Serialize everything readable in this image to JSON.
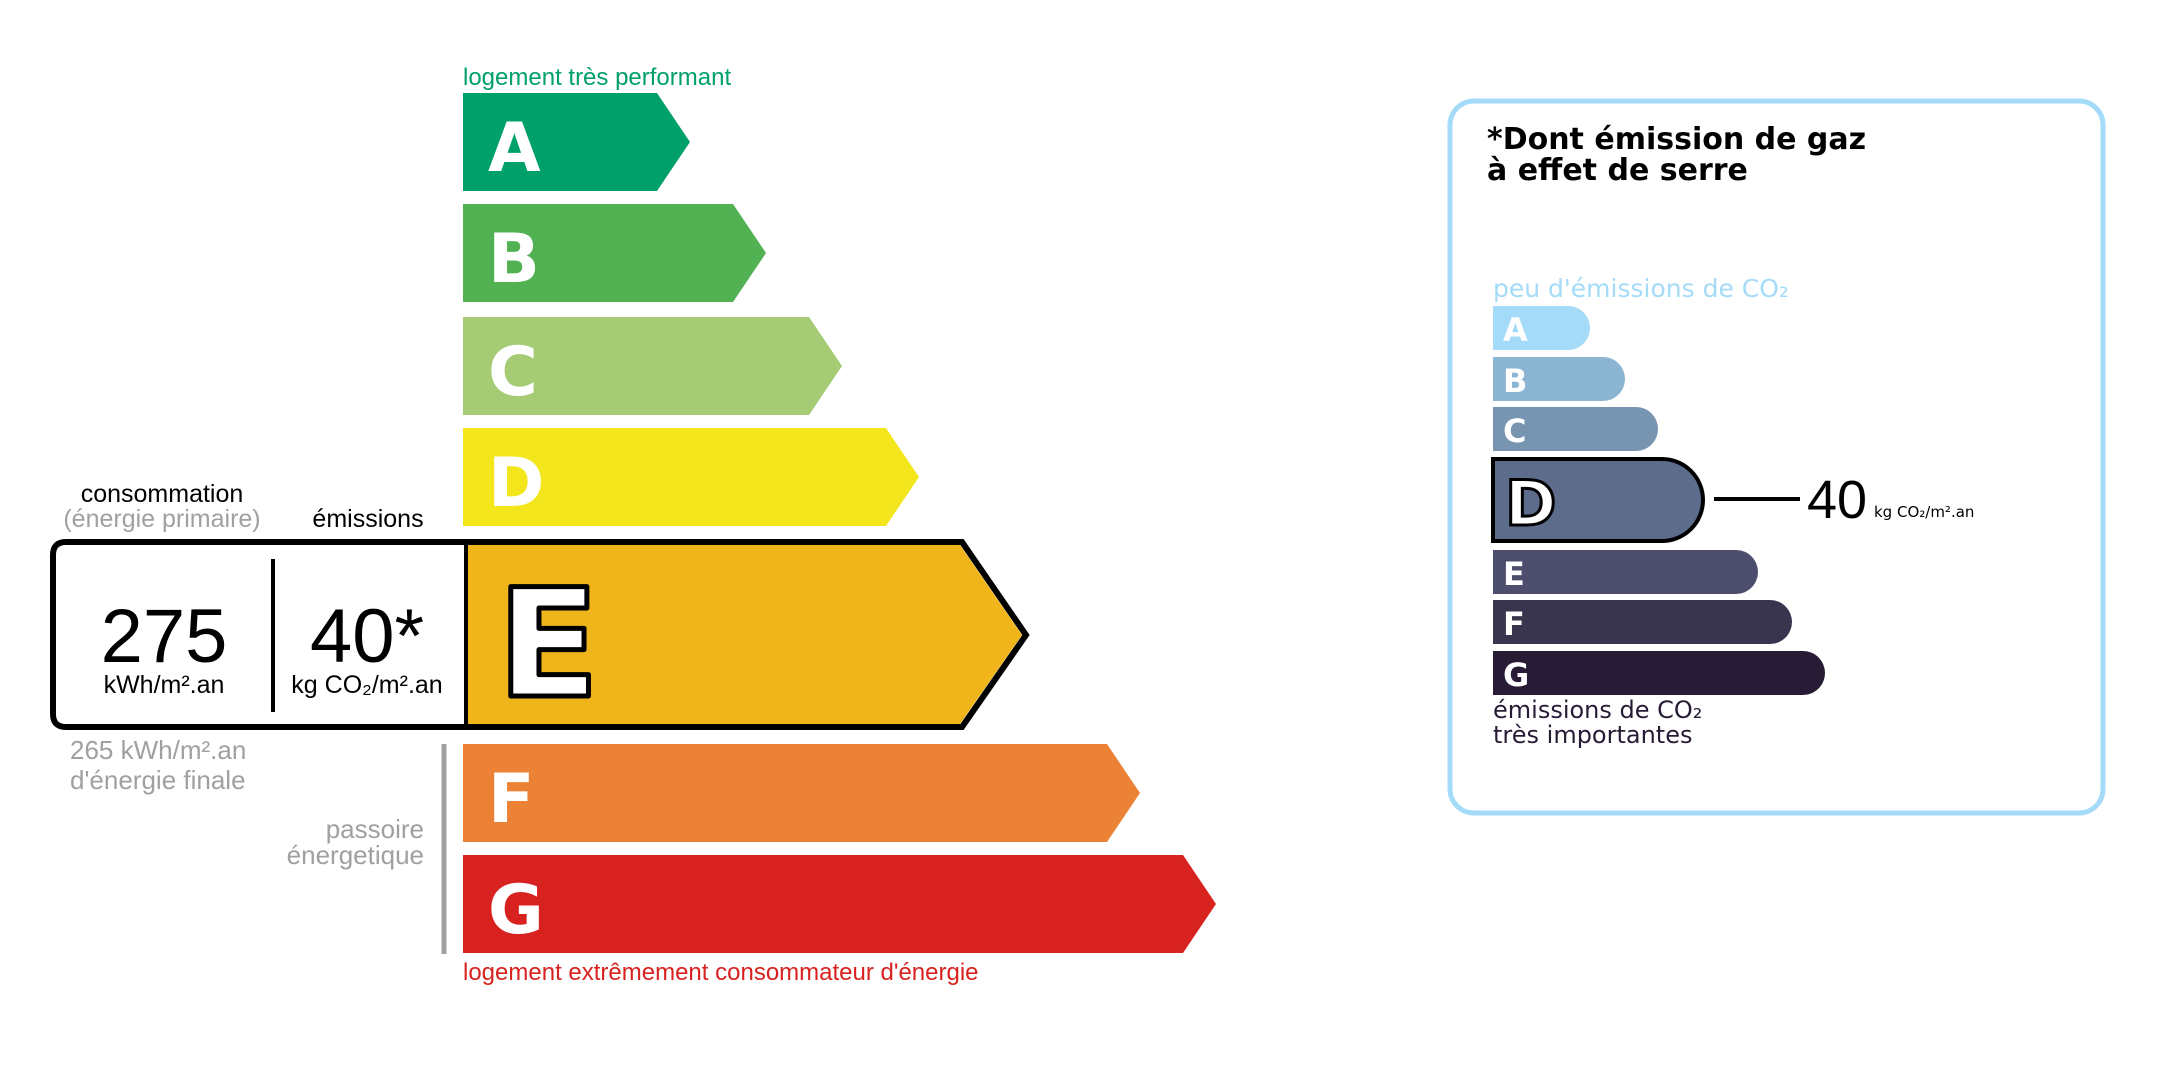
{
  "energy": {
    "top_label": "logement très performant",
    "bottom_label": "logement extrêmement consommateur d'énergie",
    "classes": [
      {
        "letter": "A",
        "color": "#00a06a"
      },
      {
        "letter": "B",
        "color": "#52b153"
      },
      {
        "letter": "C",
        "color": "#a5cc74"
      },
      {
        "letter": "D",
        "color": "#f3e61d"
      },
      {
        "letter": "E",
        "color": "#f0b51b"
      },
      {
        "letter": "F",
        "color": "#eb8235"
      },
      {
        "letter": "G",
        "color": "#d7221f"
      }
    ],
    "current_class": "E",
    "consumption_label": "consommation",
    "consumption_sublabel": "(énergie primaire)",
    "emissions_label": "émissions",
    "consumption_value": "275",
    "consumption_unit": "kWh/m².an",
    "emissions_value": "40*",
    "emissions_unit": "kg CO₂/m².an",
    "final_energy_line1": "265 kWh/m².an",
    "final_energy_line2": "d'énergie finale",
    "passoire_line1": "passoire",
    "passoire_line2": "énergetique"
  },
  "ges": {
    "title_line1": "*Dont émission de gaz",
    "title_line2": "à effet de serre",
    "top_label": "peu d'émissions de CO₂",
    "bottom_label_line1": "émissions de CO₂",
    "bottom_label_line2": "très importantes",
    "border_color": "#a4dbf8",
    "classes": [
      {
        "letter": "A",
        "color": "#a4dbf8"
      },
      {
        "letter": "B",
        "color": "#8cb4d3"
      },
      {
        "letter": "C",
        "color": "#7794b1"
      },
      {
        "letter": "D",
        "color": "#5e6c8c"
      },
      {
        "letter": "E",
        "color": "#4d4e6e"
      },
      {
        "letter": "F",
        "color": "#39354f"
      },
      {
        "letter": "G",
        "color": "#281b35"
      }
    ],
    "current_class": "D",
    "value": "40",
    "unit": "kg CO₂/m².an"
  }
}
